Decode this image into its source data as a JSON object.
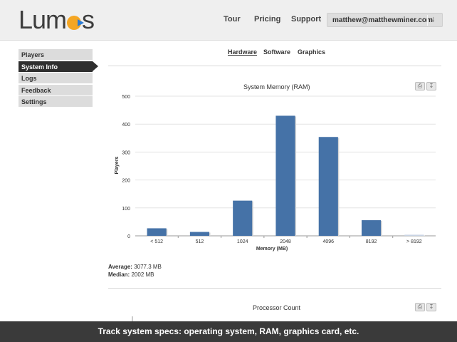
{
  "header": {
    "logo_text_start": "Lum",
    "logo_text_end": "s",
    "nav": [
      "Tour",
      "Pricing",
      "Support"
    ],
    "user_email": "matthew@matthewminer.com",
    "user_menu_icon": "arrow-down-icon"
  },
  "sidebar": {
    "items": [
      {
        "label": "Players",
        "active": false
      },
      {
        "label": "System Info",
        "active": true
      },
      {
        "label": "Logs",
        "active": false
      },
      {
        "label": "Feedback",
        "active": false
      },
      {
        "label": "Settings",
        "active": false
      }
    ]
  },
  "tabs": [
    {
      "label": "Hardware",
      "active": true
    },
    {
      "label": "Software",
      "active": false
    },
    {
      "label": "Graphics",
      "active": false
    }
  ],
  "chart_data": [
    {
      "type": "bar",
      "title": "System Memory (RAM)",
      "xlabel": "Memory (MB)",
      "ylabel": "Players",
      "categories": [
        "< 512",
        "512",
        "1024",
        "2048",
        "4096",
        "8192",
        "> 8192"
      ],
      "values": [
        27,
        14,
        126,
        430,
        354,
        56,
        4
      ],
      "ylim": [
        0,
        500
      ],
      "yticks": [
        "0",
        "100",
        "200",
        "300",
        "400",
        "500"
      ],
      "color": "#4572a7",
      "grid": true
    },
    {
      "type": "bar",
      "title": "Processor Count"
    }
  ],
  "stats": {
    "average_label": "Average:",
    "average_value": "3077.3 MB",
    "median_label": "Median:",
    "median_value": "2002 MB"
  },
  "caption": "Track system specs: operating system, RAM, graphics card, etc."
}
